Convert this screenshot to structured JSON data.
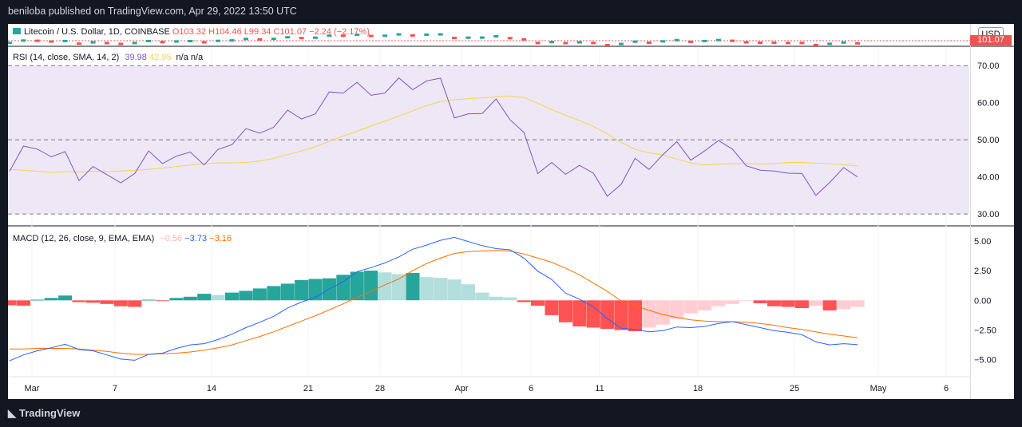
{
  "header": {
    "published": "beniloba published on TradingView.com, Apr 29, 2022 13:50 UTC"
  },
  "footer": {
    "brand": "TradingView"
  },
  "main_legend": {
    "symbol": "Litecoin / U.S. Dollar, 1D, COINBASE",
    "open": "O103.32",
    "high": "H104.46",
    "low": "L99.34",
    "close": "C101.07",
    "change": "−2.24 (−2.17%)",
    "currency": "USD",
    "last_price": "101.07"
  },
  "rsi_legend": {
    "name": "RSI (14, close, SMA, 14, 2)",
    "rsi": "39.98",
    "sma": "42.95",
    "na1": "n/a",
    "na2": "n/a"
  },
  "macd_legend": {
    "name": "MACD (12, 26, close, 9, EMA, EMA)",
    "hist": "−0.56",
    "macd": "−3.73",
    "signal": "−3.16"
  },
  "colors": {
    "rsi_line": "#7e57c2",
    "rsi_sma": "#f7d44c",
    "rsi_band": "#ede7f6",
    "macd_line": "#2962ff",
    "signal_line": "#ff6d00",
    "hist_pos_strong": "#26a69a",
    "hist_pos_weak": "#b2dfdb",
    "hist_neg_strong": "#ff5252",
    "hist_neg_weak": "#ffcdd2",
    "up_candle": "#26a69a",
    "down_candle": "#ef5350"
  },
  "chart_data": [
    {
      "type": "line",
      "title": "RSI (14, close, SMA, 14, 2)",
      "x_tick_labels": [
        "Mar",
        "7",
        "14",
        "21",
        "28",
        "Apr",
        "6",
        "11",
        "18",
        "25",
        "May",
        "6"
      ],
      "y_ticks": [
        30,
        40,
        50,
        60,
        70
      ],
      "ylim": [
        27,
        75
      ],
      "bands": {
        "upper": 70,
        "middle": 50,
        "lower": 30
      },
      "series": [
        {
          "name": "RSI",
          "values": [
            41.5,
            48.3,
            47.5,
            45.4,
            46.8,
            39.0,
            42.8,
            40.6,
            38.4,
            40.9,
            47.0,
            43.6,
            45.6,
            46.7,
            43.2,
            47.4,
            48.7,
            53.0,
            51.8,
            53.4,
            58.0,
            55.6,
            57.0,
            62.9,
            62.6,
            65.5,
            62.0,
            62.6,
            66.7,
            63.5,
            65.9,
            66.6,
            55.9,
            57.0,
            57.1,
            61.0,
            55.4,
            52.0,
            40.9,
            43.9,
            40.7,
            43.1,
            41.0,
            34.8,
            38.0,
            45.0,
            42.0,
            46.0,
            49.5,
            44.5,
            47.0,
            49.8,
            47.5,
            43.0,
            41.8,
            41.6,
            41.0,
            40.9,
            35.0,
            38.5,
            42.5,
            39.98
          ]
        },
        {
          "name": "SMA",
          "values": [
            42.0,
            41.8,
            41.5,
            41.2,
            41.4,
            41.3,
            41.5,
            41.4,
            41.6,
            41.8,
            42.0,
            42.4,
            42.8,
            43.2,
            43.5,
            43.8,
            43.8,
            43.9,
            44.3,
            45.0,
            46.0,
            47.0,
            48.1,
            49.6,
            51.0,
            52.3,
            53.7,
            55.0,
            56.4,
            57.8,
            59.2,
            60.3,
            60.8,
            61.1,
            61.3,
            61.6,
            61.8,
            61.4,
            59.9,
            58.1,
            56.6,
            55.2,
            53.6,
            51.6,
            49.3,
            47.4,
            46.5,
            45.9,
            44.8,
            43.8,
            43.2,
            43.4,
            43.6,
            43.6,
            43.4,
            43.6,
            43.9,
            43.9,
            43.7,
            43.5,
            43.3,
            42.95
          ]
        }
      ]
    },
    {
      "type": "bar",
      "title": "MACD (12, 26, close, 9, EMA, EMA)",
      "x_tick_labels": [
        "Mar",
        "7",
        "14",
        "21",
        "28",
        "Apr",
        "6",
        "11",
        "18",
        "25",
        "May",
        "6"
      ],
      "y_ticks": [
        -5.0,
        -2.5,
        0.0,
        2.5,
        5.0
      ],
      "ylim": [
        -6.3,
        6.2
      ],
      "series": [
        {
          "name": "Histogram",
          "values": [
            -0.42,
            -0.45,
            0.05,
            0.2,
            0.4,
            -0.15,
            -0.2,
            -0.3,
            -0.5,
            -0.55,
            0.05,
            -0.05,
            0.2,
            0.3,
            0.55,
            0.45,
            0.65,
            0.8,
            1.0,
            1.2,
            1.4,
            1.7,
            1.8,
            1.85,
            2.15,
            2.4,
            2.5,
            2.35,
            2.2,
            2.3,
            1.95,
            1.9,
            1.75,
            1.35,
            0.65,
            0.3,
            0.25,
            -0.15,
            -0.45,
            -1.25,
            -1.85,
            -2.2,
            -2.3,
            -2.4,
            -2.5,
            -2.6,
            -2.3,
            -2.05,
            -1.55,
            -1.1,
            -0.85,
            -0.5,
            -0.3,
            -0.05,
            -0.25,
            -0.5,
            -0.55,
            -0.65,
            -0.45,
            -0.85,
            -0.75,
            -0.56
          ]
        },
        {
          "name": "MACD",
          "values": [
            -5.1,
            -4.6,
            -4.25,
            -4.0,
            -3.7,
            -4.15,
            -4.25,
            -4.6,
            -4.95,
            -5.05,
            -4.55,
            -4.45,
            -4.05,
            -3.75,
            -3.65,
            -3.3,
            -2.85,
            -2.3,
            -1.85,
            -1.35,
            -0.65,
            -0.15,
            0.25,
            0.95,
            1.55,
            2.4,
            2.75,
            3.15,
            3.65,
            4.3,
            4.65,
            5.05,
            5.3,
            4.95,
            4.6,
            4.35,
            4.25,
            3.55,
            2.45,
            1.75,
            0.6,
            0.1,
            -0.55,
            -1.55,
            -2.35,
            -2.45,
            -2.65,
            -2.55,
            -2.25,
            -2.3,
            -2.2,
            -1.95,
            -1.8,
            -2.05,
            -2.3,
            -2.55,
            -2.7,
            -2.9,
            -3.5,
            -3.75,
            -3.65,
            -3.73
          ]
        },
        {
          "name": "Signal",
          "values": [
            -4.1,
            -4.1,
            -4.05,
            -4.05,
            -4.05,
            -4.1,
            -4.2,
            -4.3,
            -4.45,
            -4.55,
            -4.55,
            -4.5,
            -4.45,
            -4.35,
            -4.2,
            -4.0,
            -3.75,
            -3.4,
            -3.05,
            -2.65,
            -2.2,
            -1.75,
            -1.3,
            -0.8,
            -0.3,
            0.25,
            0.75,
            1.3,
            1.8,
            2.5,
            3.1,
            3.55,
            3.95,
            4.1,
            4.15,
            4.2,
            4.15,
            3.9,
            3.55,
            3.2,
            2.7,
            2.15,
            1.45,
            0.75,
            -0.05,
            -0.45,
            -0.85,
            -1.2,
            -1.45,
            -1.65,
            -1.75,
            -1.8,
            -1.8,
            -1.85,
            -1.95,
            -2.1,
            -2.3,
            -2.45,
            -2.65,
            -2.85,
            -3.0,
            -3.16
          ]
        }
      ]
    }
  ]
}
